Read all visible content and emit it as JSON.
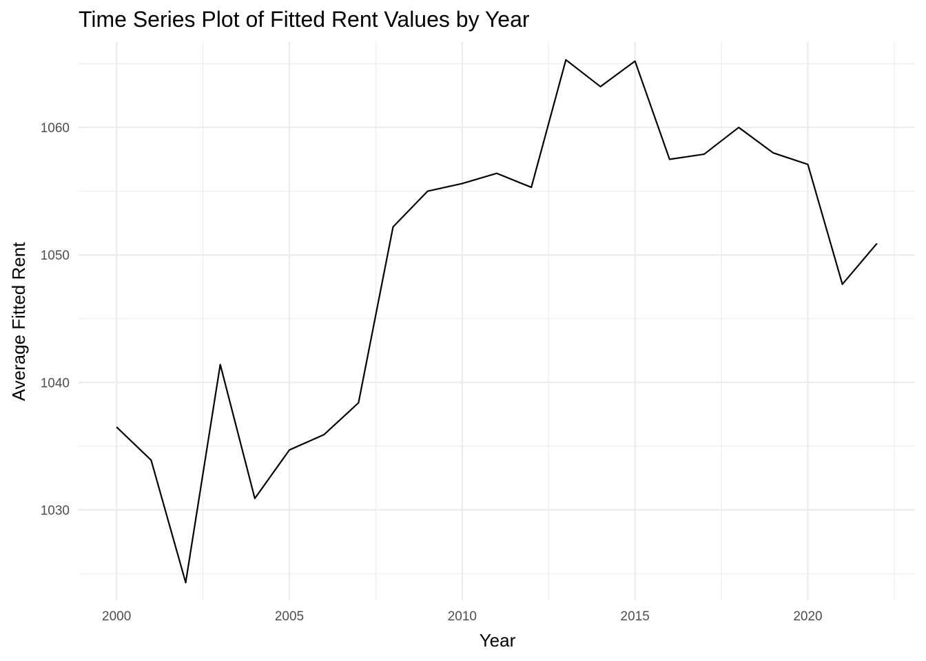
{
  "chart_data": {
    "type": "line",
    "title": "Time Series Plot of Fitted Rent Values by Year",
    "xlabel": "Year",
    "ylabel": "Average Fitted Rent",
    "xlim": [
      1998.9,
      2023.1
    ],
    "ylim": [
      1022.9,
      1066.7
    ],
    "x_ticks": [
      2000,
      2005,
      2010,
      2015,
      2020
    ],
    "x_tick_labels": [
      "2000",
      "2005",
      "2010",
      "2015",
      "2020"
    ],
    "x_minor_ticks": [
      2002.5,
      2007.5,
      2012.5,
      2017.5,
      2022.5
    ],
    "y_ticks": [
      1030,
      1040,
      1050,
      1060
    ],
    "y_tick_labels": [
      "1030",
      "1040",
      "1050",
      "1060"
    ],
    "y_minor_ticks": [
      1025,
      1035,
      1045,
      1055,
      1065
    ],
    "grid": true,
    "legend": "none",
    "series": [
      {
        "color": "#000000",
        "x": [
          2000,
          2001,
          2002,
          2003,
          2004,
          2005,
          2006,
          2007,
          2008,
          2009,
          2010,
          2011,
          2012,
          2013,
          2014,
          2015,
          2016,
          2017,
          2018,
          2019,
          2020,
          2021,
          2022
        ],
        "values": [
          1036.5,
          1033.9,
          1024.3,
          1041.4,
          1030.9,
          1034.7,
          1035.9,
          1038.4,
          1052.2,
          1055.0,
          1055.6,
          1056.4,
          1055.3,
          1065.3,
          1063.2,
          1065.2,
          1057.5,
          1057.9,
          1060.0,
          1058.0,
          1057.1,
          1047.7,
          1050.9
        ]
      }
    ]
  }
}
